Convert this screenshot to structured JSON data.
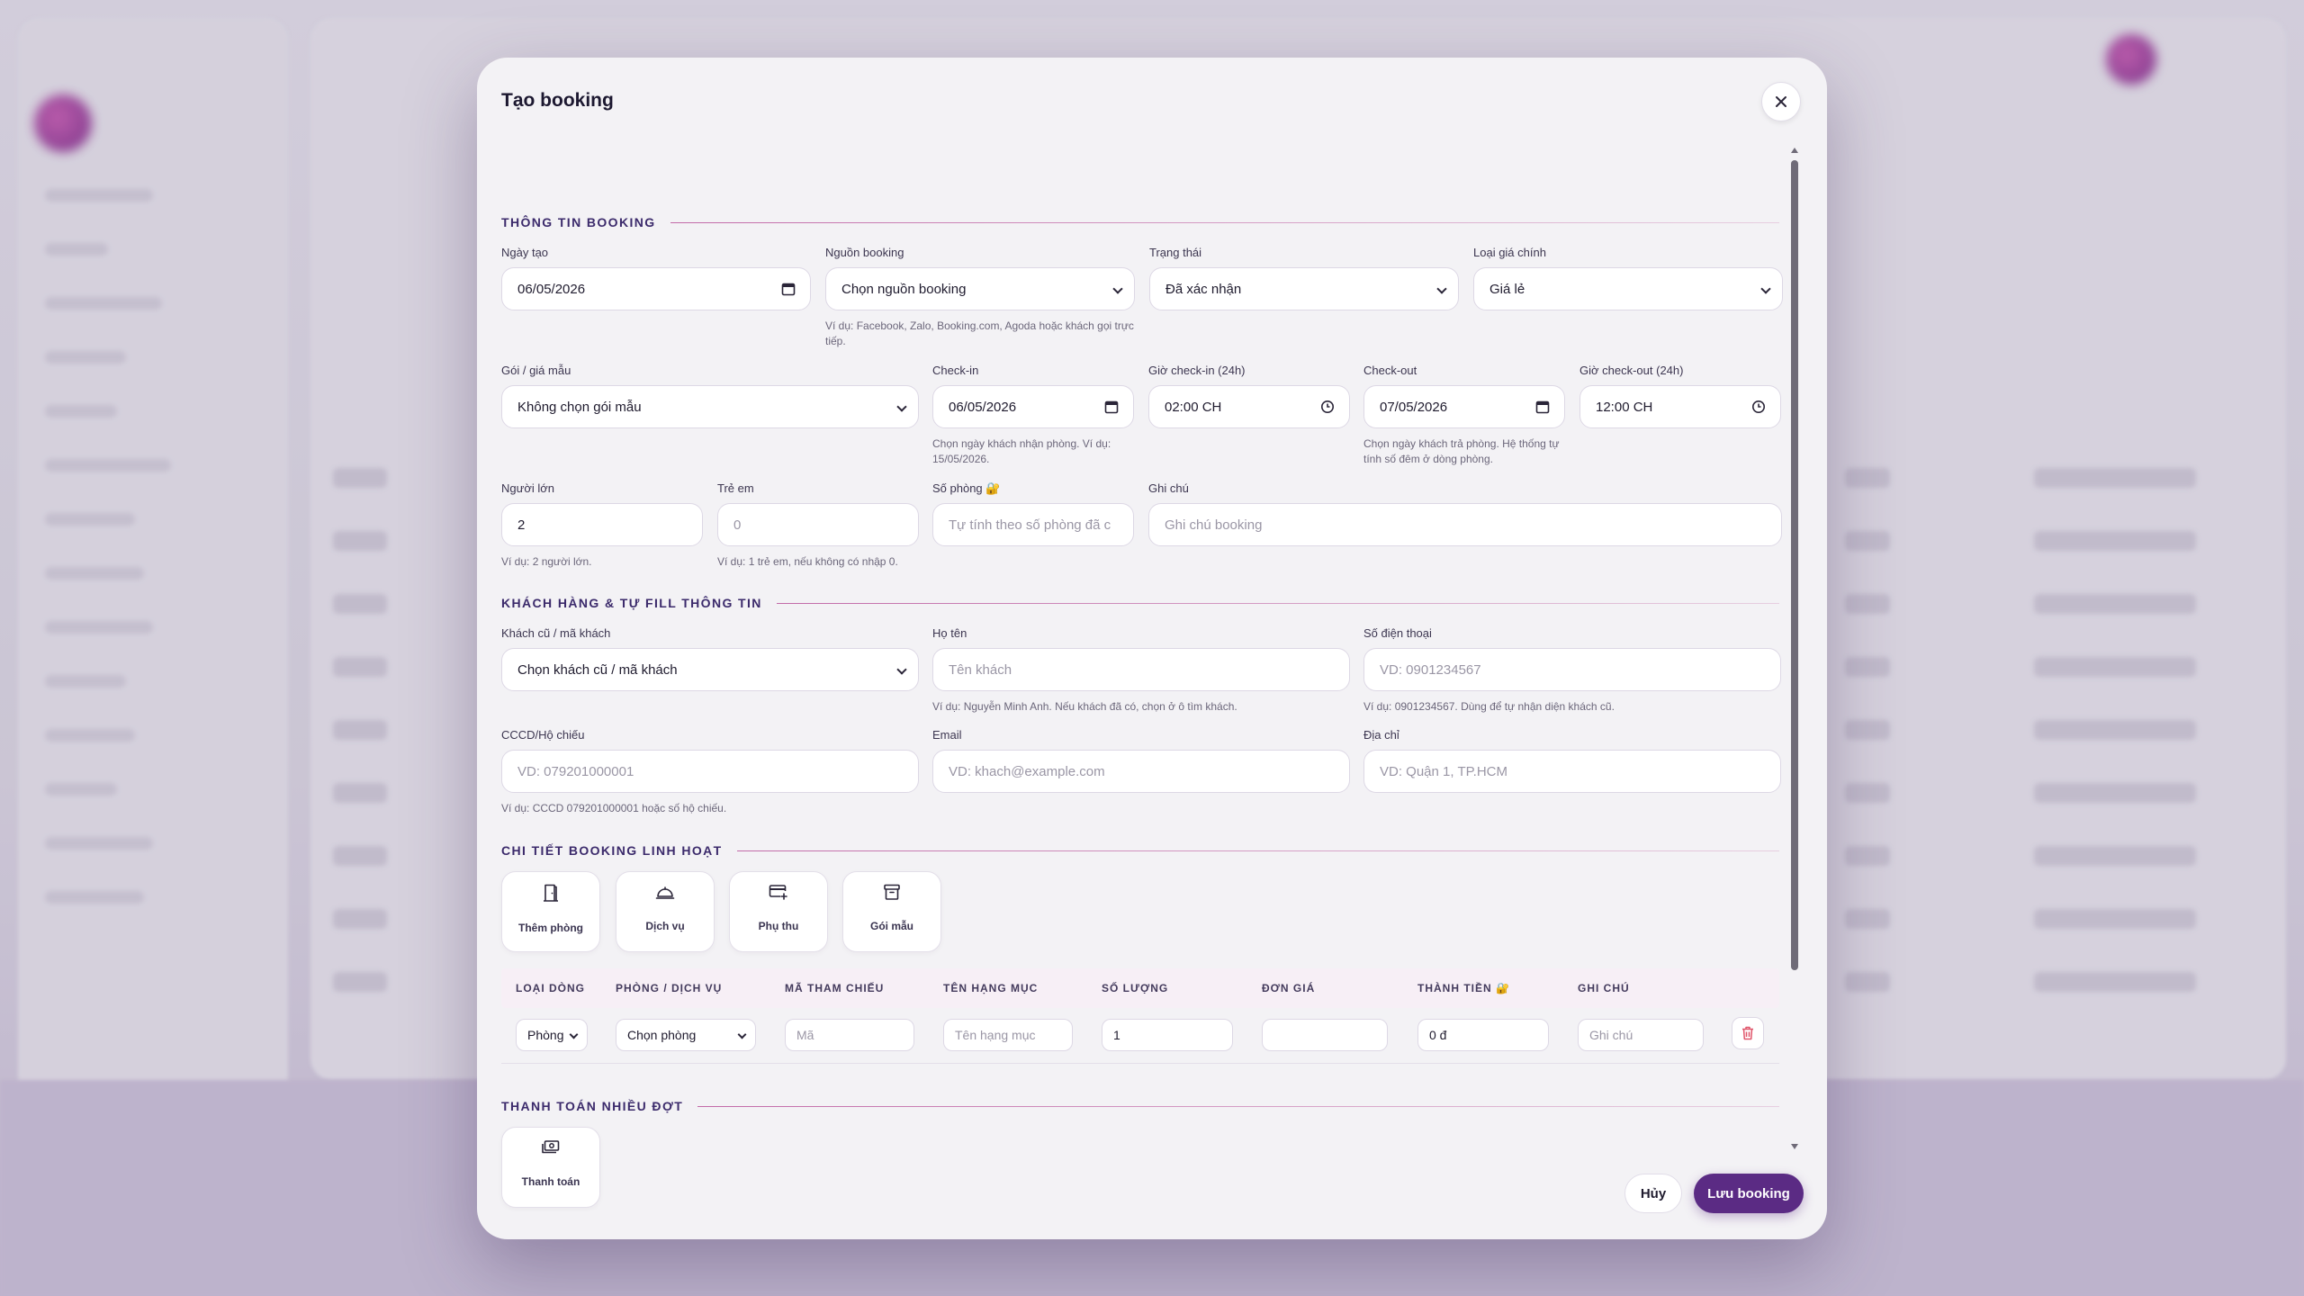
{
  "modal": {
    "title": "Tạo booking",
    "close_icon": "close-icon"
  },
  "sections": {
    "booking_info": "THÔNG TIN BOOKING",
    "customer": "KHÁCH HÀNG & TỰ FILL THÔNG TIN",
    "details": "CHI TIẾT BOOKING LINH HOẠT",
    "payment": "THANH TOÁN NHIỀU ĐỢT"
  },
  "booking": {
    "created_date": {
      "label": "Ngày tạo",
      "value": "06/05/2026"
    },
    "source": {
      "label": "Nguồn booking",
      "value": "Chọn nguồn booking",
      "hint": "Ví dụ: Facebook, Zalo, Booking.com, Agoda hoặc khách gọi trực tiếp."
    },
    "status": {
      "label": "Trạng thái",
      "value": "Đã xác nhận"
    },
    "price_type": {
      "label": "Loại giá chính",
      "value": "Giá lẻ"
    },
    "package": {
      "label": "Gói / giá mẫu",
      "value": "Không chọn gói mẫu"
    },
    "checkin": {
      "label": "Check-in",
      "value": "06/05/2026",
      "hint": "Chọn ngày khách nhận phòng. Ví dụ: 15/05/2026."
    },
    "checkin_time": {
      "label": "Giờ check-in (24h)",
      "value": "02:00 CH"
    },
    "checkout": {
      "label": "Check-out",
      "value": "07/05/2026",
      "hint": "Chọn ngày khách trả phòng. Hệ thống tự tính số đêm ở dòng phòng."
    },
    "checkout_time": {
      "label": "Giờ check-out (24h)",
      "value": "12:00 CH"
    },
    "adults": {
      "label": "Người lớn",
      "value": "2",
      "hint": "Ví dụ: 2 người lớn."
    },
    "children": {
      "label": "Trẻ em",
      "placeholder": "0",
      "hint": "Ví dụ: 1 trẻ em, nếu không có nhập 0."
    },
    "room_count": {
      "label": "Số phòng 🔐",
      "placeholder": "Tự tính theo số phòng đã c"
    },
    "note": {
      "label": "Ghi chú",
      "placeholder": "Ghi chú booking"
    }
  },
  "customer": {
    "existing": {
      "label": "Khách cũ / mã khách",
      "value": "Chọn khách cũ / mã khách"
    },
    "name": {
      "label": "Họ tên",
      "placeholder": "Tên khách",
      "hint": "Ví dụ: Nguyễn Minh Anh. Nếu khách đã có, chọn ở ô tìm khách."
    },
    "phone": {
      "label": "Số điện thoại",
      "placeholder": "VD: 0901234567",
      "hint": "Ví dụ: 0901234567. Dùng để tự nhận diện khách cũ."
    },
    "id_card": {
      "label": "CCCD/Hộ chiếu",
      "placeholder": "VD: 079201000001",
      "hint": "Ví dụ: CCCD 079201000001 hoặc số hộ chiếu."
    },
    "email": {
      "label": "Email",
      "placeholder": "VD: khach@example.com"
    },
    "address": {
      "label": "Địa chỉ",
      "placeholder": "VD: Quận 1, TP.HCM"
    }
  },
  "detail_tiles": [
    {
      "label": "Thêm phòng",
      "icon": "door-icon"
    },
    {
      "label": "Dịch vụ",
      "icon": "service-cloche-icon"
    },
    {
      "label": "Phụ thu",
      "icon": "card-plus-icon"
    },
    {
      "label": "Gói mẫu",
      "icon": "archive-box-icon"
    }
  ],
  "table": {
    "headers": [
      "LOẠI DÒNG",
      "PHÒNG / DỊCH VỤ",
      "MÃ THAM CHIẾU",
      "TÊN HẠNG MỤC",
      "SỐ LƯỢNG",
      "ĐƠN GIÁ",
      "THÀNH TIỀN 🔐",
      "GHI CHÚ"
    ],
    "row": {
      "type": "Phòng",
      "room": "Chọn phòng",
      "ref_placeholder": "Mã",
      "item_placeholder": "Tên hạng mục",
      "qty": "1",
      "unit_price": "",
      "total": "0 đ",
      "note_placeholder": "Ghi chú"
    }
  },
  "payment_tiles": [
    {
      "label": "Thanh toán",
      "icon": "money-icon"
    }
  ],
  "footer": {
    "cancel": "Hủy",
    "save": "Lưu booking"
  },
  "colors": {
    "accent": "#5b2b84",
    "section_title": "#3b2a6b",
    "section_line": "#c26aa8",
    "delete": "#e0566b"
  }
}
